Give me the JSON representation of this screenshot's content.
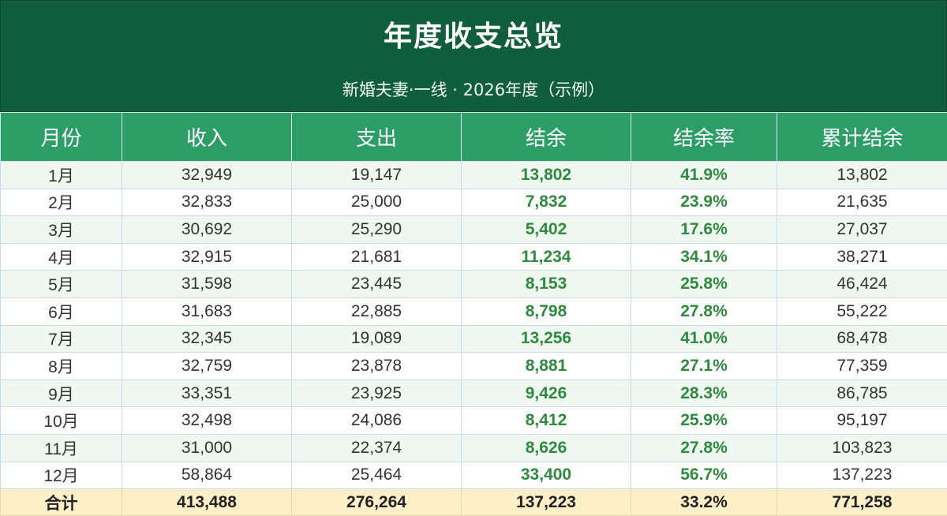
{
  "title": "年度收支总览",
  "subtitle": "新婚夫妻·一线 · 2026年度（示例）",
  "headers": [
    "月份",
    "收入",
    "支出",
    "结余",
    "结余率",
    "累计结余"
  ],
  "rows": [
    [
      "1月",
      "32,949",
      "19,147",
      "13,802",
      "41.9%",
      "13,802"
    ],
    [
      "2月",
      "32,833",
      "25,000",
      "7,832",
      "23.9%",
      "21,635"
    ],
    [
      "3月",
      "30,692",
      "25,290",
      "5,402",
      "17.6%",
      "27,037"
    ],
    [
      "4月",
      "32,915",
      "21,681",
      "11,234",
      "34.1%",
      "38,271"
    ],
    [
      "5月",
      "31,598",
      "23,445",
      "8,153",
      "25.8%",
      "46,424"
    ],
    [
      "6月",
      "31,683",
      "22,885",
      "8,798",
      "27.8%",
      "55,222"
    ],
    [
      "7月",
      "32,345",
      "19,089",
      "13,256",
      "41.0%",
      "68,478"
    ],
    [
      "8月",
      "32,759",
      "23,878",
      "8,881",
      "27.1%",
      "77,359"
    ],
    [
      "9月",
      "33,351",
      "23,925",
      "9,426",
      "28.3%",
      "86,785"
    ],
    [
      "10月",
      "32,498",
      "24,086",
      "8,412",
      "25.9%",
      "95,197"
    ],
    [
      "11月",
      "31,000",
      "22,374",
      "8,626",
      "27.8%",
      "103,823"
    ],
    [
      "12月",
      "58,864",
      "25,464",
      "33,400",
      "56.7%",
      "137,223"
    ]
  ],
  "total": [
    "合计",
    "413,488",
    "276,264",
    "137,223",
    "33.2%",
    "771,258"
  ],
  "colors": {
    "banner": "#115e3e",
    "header": "#2e9e68",
    "highlight_text": "#2f8a3f",
    "total_row": "#fdf0c8"
  }
}
